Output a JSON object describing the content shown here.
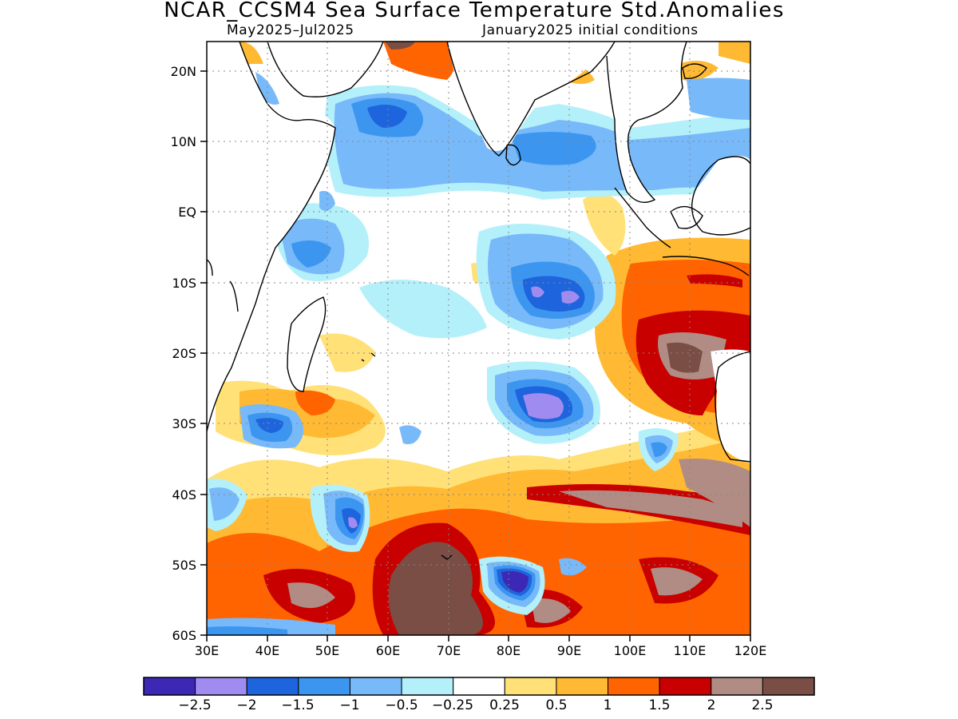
{
  "header": {
    "title": "NCAR_CCSM4 Sea Surface Temperature Std.Anomalies",
    "period": "May2025–Jul2025",
    "init": "January2025 initial conditions"
  },
  "map": {
    "lon_range": [
      30,
      120
    ],
    "lat_range": [
      -60,
      24
    ],
    "lon_ticks": [
      "30E",
      "40E",
      "50E",
      "60E",
      "70E",
      "80E",
      "90E",
      "100E",
      "110E",
      "120E"
    ],
    "lat_ticks": [
      "20N",
      "10N",
      "EQ",
      "10S",
      "20S",
      "30S",
      "40S",
      "50S",
      "60S"
    ],
    "grid": "dotted",
    "ocean_base_color": "#ffffff",
    "land_color": "#ffffff",
    "coastline_color": "#000000"
  },
  "colorbar": {
    "colors": [
      "#3c28b4",
      "#a08cf0",
      "#1e64dc",
      "#3c96f0",
      "#78b9fa",
      "#b4f0fa",
      "#ffffff",
      "#ffe178",
      "#ffb932",
      "#ff6400",
      "#c80000",
      "#b08c84",
      "#7a4d45"
    ],
    "labels": [
      "−2.5",
      "−2",
      "−1.5",
      "−1",
      "−0.5",
      "−0.25",
      "0.25",
      "0.5",
      "1",
      "1.5",
      "2",
      "2.5"
    ]
  }
}
